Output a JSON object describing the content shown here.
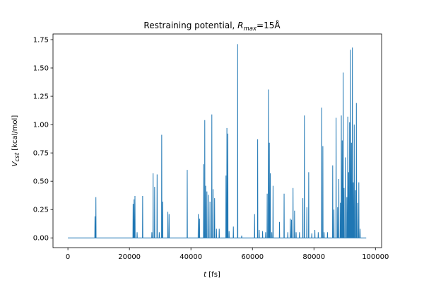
{
  "chart_data": {
    "type": "line",
    "title_text": "Restraining potential, ",
    "title_symbol": "R",
    "title_subscript": "max",
    "title_tail": "=15Å",
    "xlabel_symbol": "t",
    "xlabel_unit": " [fs]",
    "ylabel_symbol": "V",
    "ylabel_subscript": "cst",
    "ylabel_unit": " [kcal/mol]",
    "xlim": [
      -4850,
      102000
    ],
    "ylim": [
      -0.086,
      1.8
    ],
    "xticks": [
      0,
      20000,
      40000,
      60000,
      80000,
      100000
    ],
    "yticks": [
      0.0,
      0.25,
      0.5,
      0.75,
      1.0,
      1.25,
      1.5,
      1.75
    ],
    "xtick_labels": [
      "0",
      "20000",
      "40000",
      "60000",
      "80000",
      "100000"
    ],
    "ytick_labels": [
      "0.00",
      "0.25",
      "0.50",
      "0.75",
      "1.00",
      "1.25",
      "1.50",
      "1.75"
    ],
    "grid": false,
    "line_color": "#1f77b4",
    "baseline": 0.0,
    "x_end": 97000,
    "spikes": [
      {
        "x": 8800,
        "y": 0.19
      },
      {
        "x": 9100,
        "y": 0.36
      },
      {
        "x": 21200,
        "y": 0.3
      },
      {
        "x": 21500,
        "y": 0.34
      },
      {
        "x": 21800,
        "y": 0.37
      },
      {
        "x": 22500,
        "y": 0.05
      },
      {
        "x": 24300,
        "y": 0.37
      },
      {
        "x": 27300,
        "y": 0.05
      },
      {
        "x": 27700,
        "y": 0.57
      },
      {
        "x": 28200,
        "y": 0.45
      },
      {
        "x": 29000,
        "y": 0.56
      },
      {
        "x": 29700,
        "y": 0.05
      },
      {
        "x": 30500,
        "y": 0.91
      },
      {
        "x": 30800,
        "y": 0.32
      },
      {
        "x": 32500,
        "y": 0.23
      },
      {
        "x": 32900,
        "y": 0.21
      },
      {
        "x": 38800,
        "y": 0.6
      },
      {
        "x": 42400,
        "y": 0.21
      },
      {
        "x": 42800,
        "y": 0.17
      },
      {
        "x": 44100,
        "y": 0.65
      },
      {
        "x": 44500,
        "y": 1.04
      },
      {
        "x": 44800,
        "y": 0.46
      },
      {
        "x": 45200,
        "y": 0.41
      },
      {
        "x": 45700,
        "y": 0.38
      },
      {
        "x": 46200,
        "y": 0.32
      },
      {
        "x": 46800,
        "y": 1.09
      },
      {
        "x": 47200,
        "y": 0.43
      },
      {
        "x": 47700,
        "y": 0.35
      },
      {
        "x": 48300,
        "y": 0.08
      },
      {
        "x": 49200,
        "y": 0.08
      },
      {
        "x": 51400,
        "y": 0.55
      },
      {
        "x": 51700,
        "y": 0.97
      },
      {
        "x": 52000,
        "y": 0.92
      },
      {
        "x": 52400,
        "y": 0.06
      },
      {
        "x": 53800,
        "y": 0.1
      },
      {
        "x": 55200,
        "y": 1.71
      },
      {
        "x": 56500,
        "y": 0.02
      },
      {
        "x": 60700,
        "y": 0.21
      },
      {
        "x": 61700,
        "y": 0.87
      },
      {
        "x": 62200,
        "y": 0.07
      },
      {
        "x": 63300,
        "y": 0.06
      },
      {
        "x": 64300,
        "y": 0.05
      },
      {
        "x": 64800,
        "y": 0.39
      },
      {
        "x": 65200,
        "y": 1.31
      },
      {
        "x": 65500,
        "y": 0.84
      },
      {
        "x": 65800,
        "y": 0.57
      },
      {
        "x": 66300,
        "y": 0.05
      },
      {
        "x": 66700,
        "y": 0.46
      },
      {
        "x": 68800,
        "y": 0.14
      },
      {
        "x": 70300,
        "y": 0.39
      },
      {
        "x": 71500,
        "y": 0.05
      },
      {
        "x": 72300,
        "y": 0.17
      },
      {
        "x": 72700,
        "y": 0.16
      },
      {
        "x": 73200,
        "y": 0.44
      },
      {
        "x": 73700,
        "y": 0.24
      },
      {
        "x": 74200,
        "y": 0.05
      },
      {
        "x": 75300,
        "y": 0.05
      },
      {
        "x": 76400,
        "y": 0.35
      },
      {
        "x": 76900,
        "y": 1.08
      },
      {
        "x": 77700,
        "y": 0.27
      },
      {
        "x": 78300,
        "y": 0.58
      },
      {
        "x": 79300,
        "y": 0.04
      },
      {
        "x": 80300,
        "y": 0.07
      },
      {
        "x": 81400,
        "y": 0.05
      },
      {
        "x": 82500,
        "y": 1.15
      },
      {
        "x": 82900,
        "y": 0.81
      },
      {
        "x": 83300,
        "y": 0.05
      },
      {
        "x": 84400,
        "y": 0.05
      },
      {
        "x": 86100,
        "y": 0.64
      },
      {
        "x": 86500,
        "y": 0.25
      },
      {
        "x": 87200,
        "y": 1.06
      },
      {
        "x": 87700,
        "y": 0.27
      },
      {
        "x": 88100,
        "y": 0.52
      },
      {
        "x": 88600,
        "y": 0.31
      },
      {
        "x": 88900,
        "y": 1.08
      },
      {
        "x": 89200,
        "y": 0.86
      },
      {
        "x": 89500,
        "y": 1.46
      },
      {
        "x": 89800,
        "y": 0.44
      },
      {
        "x": 90200,
        "y": 0.71
      },
      {
        "x": 90700,
        "y": 0.36
      },
      {
        "x": 91000,
        "y": 1.07
      },
      {
        "x": 91300,
        "y": 0.58
      },
      {
        "x": 91600,
        "y": 1.02
      },
      {
        "x": 91900,
        "y": 1.66
      },
      {
        "x": 92200,
        "y": 0.84
      },
      {
        "x": 92500,
        "y": 1.68
      },
      {
        "x": 92800,
        "y": 0.49
      },
      {
        "x": 93100,
        "y": 1.0
      },
      {
        "x": 93500,
        "y": 0.42
      },
      {
        "x": 93800,
        "y": 1.19
      },
      {
        "x": 94200,
        "y": 0.31
      },
      {
        "x": 94600,
        "y": 0.49
      },
      {
        "x": 95000,
        "y": 0.08
      }
    ]
  }
}
